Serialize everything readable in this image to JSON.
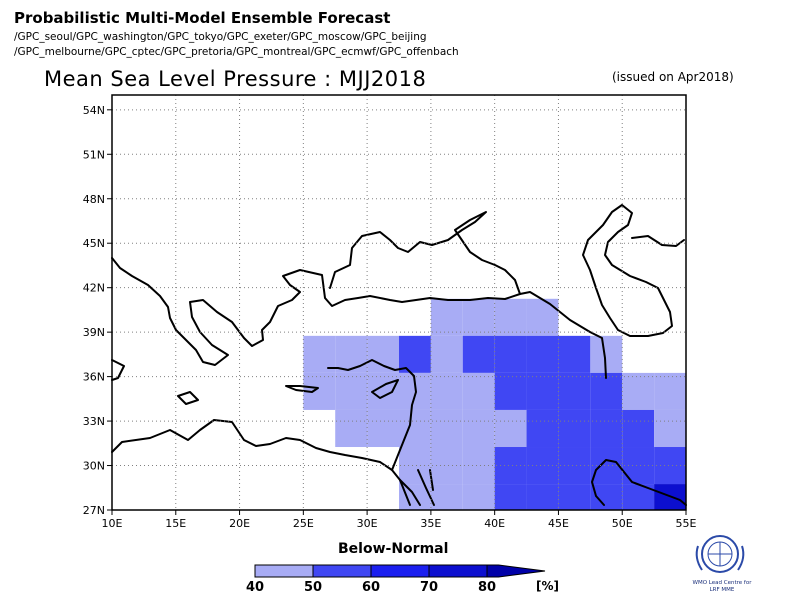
{
  "header": {
    "title": "Probabilistic Multi-Model Ensemble Forecast",
    "gpc_line1": "/GPC_seoul/GPC_washington/GPC_tokyo/GPC_exeter/GPC_moscow/GPC_beijing",
    "gpc_line2": "/GPC_melbourne/GPC_cptec/GPC_pretoria/GPC_montreal/GPC_ecmwf/GPC_offenbach"
  },
  "map": {
    "title": "Mean Sea Level Pressure : MJJ2018",
    "issued": "(issued on Apr2018)",
    "lon_range": [
      10,
      55
    ],
    "lat_range": [
      27,
      55
    ],
    "lon_ticks": [
      "10E",
      "15E",
      "20E",
      "25E",
      "30E",
      "35E",
      "40E",
      "45E",
      "50E",
      "55E"
    ],
    "lat_ticks": [
      "27N",
      "30N",
      "33N",
      "36N",
      "39N",
      "42N",
      "45N",
      "48N",
      "51N",
      "54N"
    ],
    "grid": "dotted",
    "cell_size_deg": 2.5,
    "category_colors": [
      "#a8acf5",
      "#4047f3",
      "#1b1fef",
      "#0c0fcf",
      "#0000a8"
    ],
    "cells": [
      {
        "lon": 36.25,
        "lat": 40.0,
        "category": 0
      },
      {
        "lon": 38.75,
        "lat": 40.0,
        "category": 0
      },
      {
        "lon": 41.25,
        "lat": 40.0,
        "category": 0
      },
      {
        "lon": 43.75,
        "lat": 40.0,
        "category": 0
      },
      {
        "lon": 26.25,
        "lat": 37.5,
        "category": 0
      },
      {
        "lon": 28.75,
        "lat": 37.5,
        "category": 0
      },
      {
        "lon": 31.25,
        "lat": 37.5,
        "category": 0
      },
      {
        "lon": 33.75,
        "lat": 37.5,
        "category": 1
      },
      {
        "lon": 36.25,
        "lat": 37.5,
        "category": 0
      },
      {
        "lon": 38.75,
        "lat": 37.5,
        "category": 1
      },
      {
        "lon": 41.25,
        "lat": 37.5,
        "category": 1
      },
      {
        "lon": 43.75,
        "lat": 37.5,
        "category": 1
      },
      {
        "lon": 46.25,
        "lat": 37.5,
        "category": 1
      },
      {
        "lon": 48.75,
        "lat": 37.5,
        "category": 0
      },
      {
        "lon": 26.25,
        "lat": 35.0,
        "category": 0
      },
      {
        "lon": 28.75,
        "lat": 35.0,
        "category": 0
      },
      {
        "lon": 31.25,
        "lat": 35.0,
        "category": 0
      },
      {
        "lon": 33.75,
        "lat": 35.0,
        "category": 0
      },
      {
        "lon": 36.25,
        "lat": 35.0,
        "category": 0
      },
      {
        "lon": 38.75,
        "lat": 35.0,
        "category": 0
      },
      {
        "lon": 41.25,
        "lat": 35.0,
        "category": 1
      },
      {
        "lon": 43.75,
        "lat": 35.0,
        "category": 1
      },
      {
        "lon": 46.25,
        "lat": 35.0,
        "category": 1
      },
      {
        "lon": 48.75,
        "lat": 35.0,
        "category": 1
      },
      {
        "lon": 51.25,
        "lat": 35.0,
        "category": 0
      },
      {
        "lon": 53.75,
        "lat": 35.0,
        "category": 0
      },
      {
        "lon": 28.75,
        "lat": 32.5,
        "category": 0
      },
      {
        "lon": 31.25,
        "lat": 32.5,
        "category": 0
      },
      {
        "lon": 33.75,
        "lat": 32.5,
        "category": 0
      },
      {
        "lon": 36.25,
        "lat": 32.5,
        "category": 0
      },
      {
        "lon": 38.75,
        "lat": 32.5,
        "category": 0
      },
      {
        "lon": 41.25,
        "lat": 32.5,
        "category": 0
      },
      {
        "lon": 43.75,
        "lat": 32.5,
        "category": 1
      },
      {
        "lon": 46.25,
        "lat": 32.5,
        "category": 1
      },
      {
        "lon": 48.75,
        "lat": 32.5,
        "category": 1
      },
      {
        "lon": 51.25,
        "lat": 32.5,
        "category": 1
      },
      {
        "lon": 53.75,
        "lat": 32.5,
        "category": 0
      },
      {
        "lon": 33.75,
        "lat": 30.0,
        "category": 0
      },
      {
        "lon": 36.25,
        "lat": 30.0,
        "category": 0
      },
      {
        "lon": 38.75,
        "lat": 30.0,
        "category": 0
      },
      {
        "lon": 41.25,
        "lat": 30.0,
        "category": 1
      },
      {
        "lon": 43.75,
        "lat": 30.0,
        "category": 1
      },
      {
        "lon": 46.25,
        "lat": 30.0,
        "category": 1
      },
      {
        "lon": 48.75,
        "lat": 30.0,
        "category": 1
      },
      {
        "lon": 51.25,
        "lat": 30.0,
        "category": 1
      },
      {
        "lon": 53.75,
        "lat": 30.0,
        "category": 1
      },
      {
        "lon": 33.75,
        "lat": 27.5,
        "category": 0
      },
      {
        "lon": 36.25,
        "lat": 27.5,
        "category": 0
      },
      {
        "lon": 38.75,
        "lat": 27.5,
        "category": 0
      },
      {
        "lon": 41.25,
        "lat": 27.5,
        "category": 1
      },
      {
        "lon": 43.75,
        "lat": 27.5,
        "category": 1
      },
      {
        "lon": 46.25,
        "lat": 27.5,
        "category": 1
      },
      {
        "lon": 48.75,
        "lat": 27.5,
        "category": 1
      },
      {
        "lon": 51.25,
        "lat": 27.5,
        "category": 1
      },
      {
        "lon": 53.75,
        "lat": 27.5,
        "category": 3
      }
    ]
  },
  "legend": {
    "title": "Below-Normal",
    "labels": [
      "40",
      "50",
      "60",
      "70",
      "80"
    ],
    "unit": "[%]",
    "colors": [
      "#a8acf5",
      "#4047f3",
      "#1b1fef",
      "#0c0fcf",
      "#0000a8"
    ]
  },
  "logo": {
    "icon": "wmo-emblem-icon",
    "text_line1": "WMO Lead Centre for",
    "text_line2": "LRF MME"
  }
}
